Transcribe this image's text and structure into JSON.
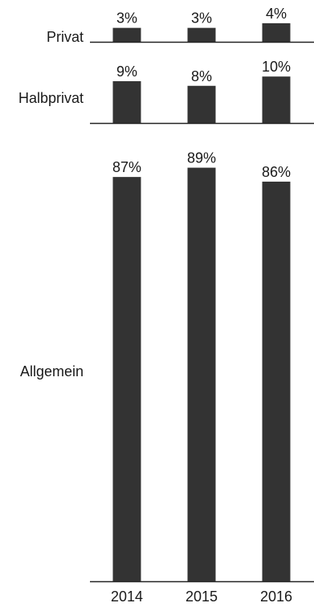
{
  "chart_data": {
    "type": "bar",
    "layout": "small-multiples",
    "categories": [
      "2014",
      "2015",
      "2016"
    ],
    "series": [
      {
        "name": "Privat",
        "values": [
          3,
          3,
          4
        ],
        "labels": [
          "3%",
          "3%",
          "4%"
        ]
      },
      {
        "name": "Halbprivat",
        "values": [
          9,
          8,
          10
        ],
        "labels": [
          "9%",
          "8%",
          "10%"
        ]
      },
      {
        "name": "Allgemein",
        "values": [
          87,
          89,
          86
        ],
        "labels": [
          "87%",
          "89%",
          "86%"
        ]
      }
    ],
    "value_unit": "%",
    "bar_color": "#333333",
    "grid": false,
    "legend": "none"
  }
}
